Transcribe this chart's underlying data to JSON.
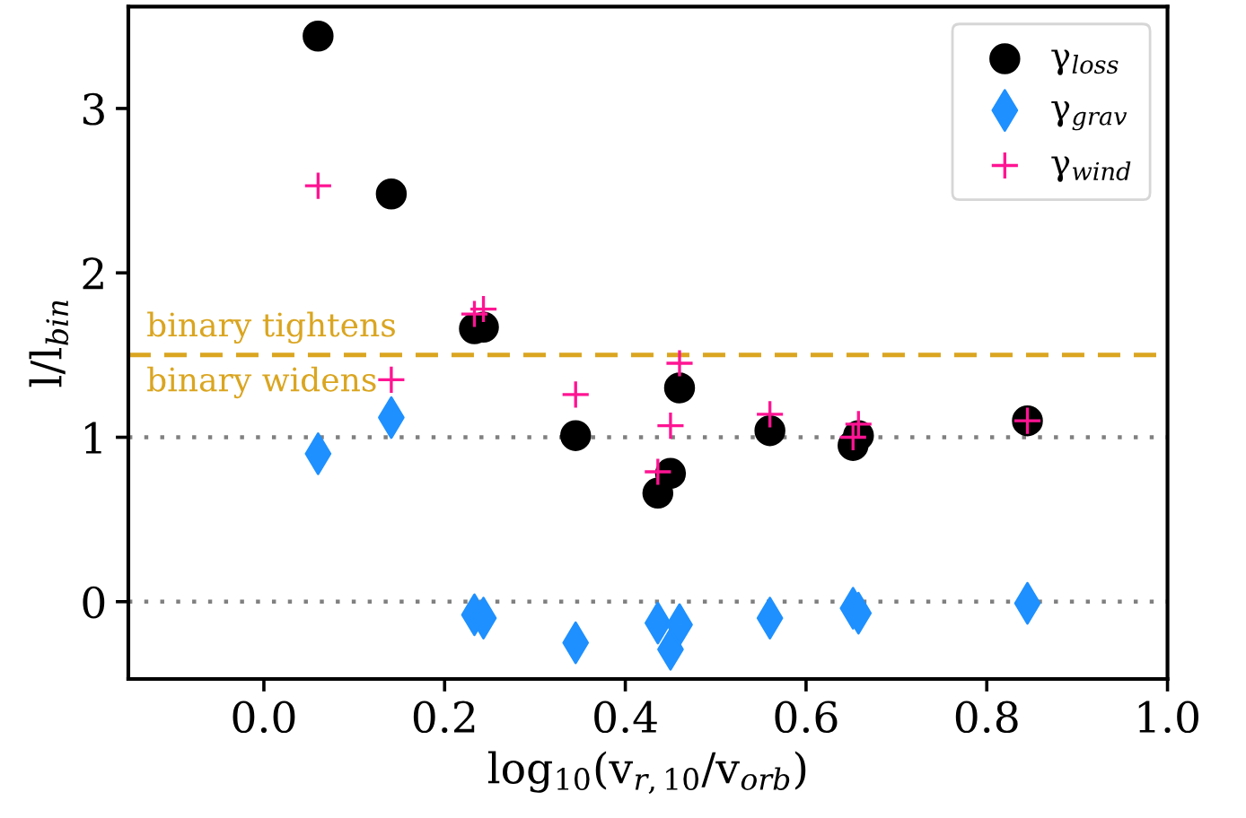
{
  "chart_data": {
    "type": "scatter",
    "xlabel": "log$_{10}$(v$_{r,10}$/v$_{orb}$)",
    "ylabel": "l/l$_{bin}$",
    "x": [
      0.06,
      0.141,
      0.233,
      0.243,
      0.345,
      0.436,
      0.45,
      0.46,
      0.56,
      0.652,
      0.658,
      0.845
    ],
    "series": [
      {
        "name": "γ$_{loss}$",
        "color": "#000000",
        "marker": "circle",
        "values": [
          3.44,
          2.48,
          1.66,
          1.67,
          1.01,
          0.66,
          0.78,
          1.3,
          1.04,
          0.95,
          1.01,
          1.1
        ]
      },
      {
        "name": "γ$_{grav}$",
        "color": "#1e90ff",
        "marker": "diamond",
        "values": [
          0.9,
          1.12,
          -0.08,
          -0.1,
          -0.25,
          -0.13,
          -0.29,
          -0.14,
          -0.1,
          -0.04,
          -0.07,
          -0.01
        ]
      },
      {
        "name": "γ$_{wind}$",
        "color": "#ff1493",
        "marker": "cross",
        "values": [
          2.53,
          1.35,
          1.75,
          1.78,
          1.26,
          0.79,
          1.07,
          1.45,
          1.14,
          1.0,
          1.08,
          1.1
        ]
      }
    ],
    "xlim": [
      -0.15,
      1.0
    ],
    "ylim": [
      -0.47,
      3.62
    ],
    "xticks": [
      {
        "value": 0.0,
        "label": "0.0"
      },
      0.2,
      0.4,
      0.6,
      0.8,
      {
        "value": 1.0,
        "label": "1.0"
      }
    ],
    "yticks": [
      0,
      1,
      2,
      3
    ],
    "ref_lines": [
      {
        "axis": "y",
        "value": 1.5,
        "color": "#daa520",
        "line_style": "dashed"
      },
      {
        "axis": "y",
        "value": 1,
        "color": "#808080",
        "line_style": "dotted"
      },
      {
        "axis": "y",
        "value": 0,
        "color": "#808080",
        "line_style": "dotted"
      }
    ],
    "annotations": [
      "binary tightens",
      "binary widens"
    ],
    "legend": "top right",
    "grid": false
  }
}
